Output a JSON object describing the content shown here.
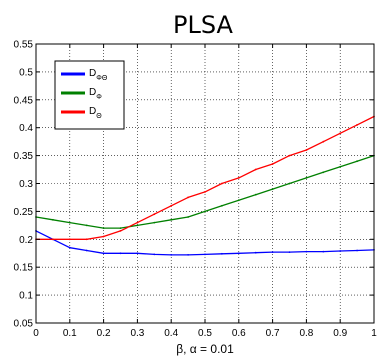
{
  "chart_data": {
    "type": "line",
    "title": "PLSA",
    "xlabel": "β, α = 0.01",
    "ylabel": "",
    "xlim": [
      0,
      1
    ],
    "ylim": [
      0.05,
      0.55
    ],
    "xticks": [
      "0",
      "0.1",
      "0.2",
      "0.3",
      "0.4",
      "0.5",
      "0.6",
      "0.7",
      "0.8",
      "0.9",
      "1"
    ],
    "yticks": [
      "0.05",
      "0.1",
      "0.15",
      "0.2",
      "0.25",
      "0.3",
      "0.35",
      "0.4",
      "0.45",
      "0.5",
      "0.55"
    ],
    "grid": true,
    "legend_position": "top-left",
    "series": [
      {
        "name": "D",
        "subscript": "ΦΘ",
        "color": "#0000ff",
        "x": [
          0,
          0.05,
          0.1,
          0.15,
          0.2,
          0.25,
          0.3,
          0.35,
          0.4,
          0.45,
          0.5,
          0.55,
          0.6,
          0.65,
          0.7,
          0.75,
          0.8,
          0.85,
          0.9,
          0.95,
          1.0
        ],
        "y": [
          0.215,
          0.2,
          0.185,
          0.18,
          0.175,
          0.175,
          0.175,
          0.173,
          0.172,
          0.172,
          0.173,
          0.174,
          0.175,
          0.176,
          0.177,
          0.177,
          0.178,
          0.178,
          0.179,
          0.18,
          0.181
        ]
      },
      {
        "name": "D",
        "subscript": "Φ",
        "color": "#008000",
        "x": [
          0,
          0.05,
          0.1,
          0.15,
          0.2,
          0.25,
          0.3,
          0.35,
          0.4,
          0.45,
          0.5,
          0.55,
          0.6,
          0.65,
          0.7,
          0.75,
          0.8,
          0.85,
          0.9,
          0.95,
          1.0
        ],
        "y": [
          0.24,
          0.235,
          0.23,
          0.225,
          0.22,
          0.22,
          0.225,
          0.23,
          0.235,
          0.24,
          0.25,
          0.26,
          0.27,
          0.28,
          0.29,
          0.3,
          0.31,
          0.32,
          0.33,
          0.34,
          0.35
        ]
      },
      {
        "name": "D",
        "subscript": "Θ",
        "color": "#ff0000",
        "x": [
          0,
          0.05,
          0.1,
          0.15,
          0.2,
          0.25,
          0.3,
          0.35,
          0.4,
          0.45,
          0.5,
          0.55,
          0.6,
          0.65,
          0.7,
          0.75,
          0.8,
          0.85,
          0.9,
          0.95,
          1.0
        ],
        "y": [
          0.2,
          0.2,
          0.2,
          0.2,
          0.205,
          0.215,
          0.23,
          0.245,
          0.26,
          0.275,
          0.285,
          0.3,
          0.31,
          0.325,
          0.335,
          0.35,
          0.36,
          0.375,
          0.39,
          0.405,
          0.42
        ]
      }
    ]
  }
}
